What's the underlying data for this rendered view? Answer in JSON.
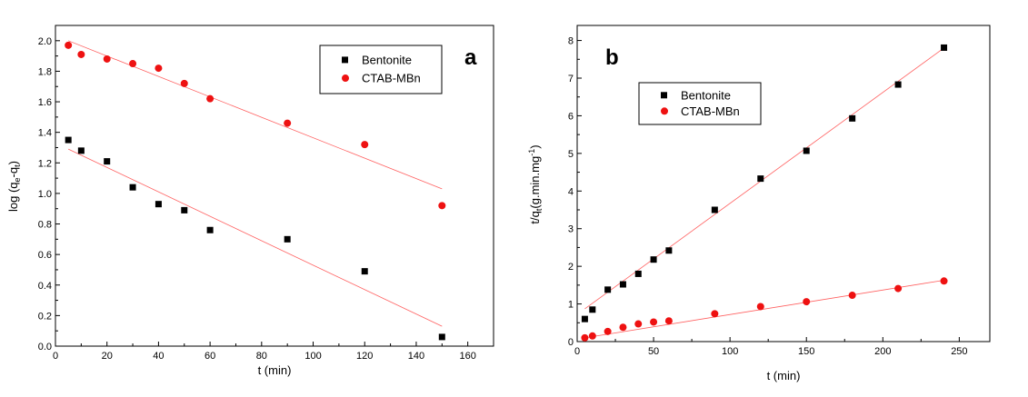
{
  "chart_data": [
    {
      "type": "scatter",
      "panel_label": "a",
      "xlabel": "t (min)",
      "ylabel_main": "log (q",
      "ylabel_sub1": "e",
      "ylabel_mid": "-q",
      "ylabel_sub2": "t",
      "ylabel_end": ")",
      "xlim": [
        0,
        170
      ],
      "ylim": [
        0,
        2.1
      ],
      "xticks": [
        0,
        20,
        40,
        60,
        80,
        100,
        120,
        140,
        160
      ],
      "yticks": [
        0.0,
        0.2,
        0.4,
        0.6,
        0.8,
        1.0,
        1.2,
        1.4,
        1.6,
        1.8,
        2.0
      ],
      "xtick_labels": [
        "0",
        "20",
        "40",
        "60",
        "80",
        "100",
        "120",
        "140",
        "160"
      ],
      "ytick_labels": [
        "0.0",
        "0.2",
        "0.4",
        "0.6",
        "0.8",
        "1.0",
        "1.2",
        "1.4",
        "1.6",
        "1.8",
        "2.0"
      ],
      "legend_position": "top-right",
      "series": [
        {
          "name": "Bentonite",
          "marker": "square",
          "color": "#000000",
          "x": [
            5,
            10,
            20,
            30,
            40,
            50,
            60,
            90,
            120,
            150
          ],
          "y": [
            1.35,
            1.28,
            1.21,
            1.04,
            0.93,
            0.89,
            0.76,
            0.7,
            0.49,
            0.06
          ],
          "fit": {
            "x": [
              5,
              150
            ],
            "y": [
              1.29,
              0.13
            ],
            "color": "#ff6060"
          }
        },
        {
          "name": "CTAB-MBn",
          "marker": "circle",
          "color": "#ee1111",
          "x": [
            5,
            10,
            20,
            30,
            40,
            50,
            60,
            90,
            120,
            150
          ],
          "y": [
            1.97,
            1.91,
            1.88,
            1.85,
            1.82,
            1.72,
            1.62,
            1.46,
            1.32,
            0.92
          ],
          "fit": {
            "x": [
              5,
              150
            ],
            "y": [
              2.0,
              1.03
            ],
            "color": "#ff6060"
          }
        }
      ]
    },
    {
      "type": "scatter",
      "panel_label": "b",
      "xlabel": "t (min)",
      "ylabel_main": "t/q",
      "ylabel_sub1": "t",
      "ylabel_mid": "(g.min.mg",
      "ylabel_sup": "-1",
      "ylabel_end": ")",
      "xlim": [
        0,
        270
      ],
      "ylim": [
        0,
        8.4
      ],
      "xticks": [
        0,
        50,
        100,
        150,
        200,
        250
      ],
      "yticks": [
        0,
        1,
        2,
        3,
        4,
        5,
        6,
        7,
        8
      ],
      "xtick_labels": [
        "0",
        "50",
        "100",
        "150",
        "200",
        "250"
      ],
      "ytick_labels": [
        "0",
        "1",
        "2",
        "3",
        "4",
        "5",
        "6",
        "7",
        "8"
      ],
      "legend_position": "top-left",
      "series": [
        {
          "name": "Bentonite",
          "marker": "square",
          "color": "#000000",
          "x": [
            5,
            10,
            20,
            30,
            40,
            50,
            60,
            90,
            120,
            150,
            180,
            210,
            240
          ],
          "y": [
            0.6,
            0.85,
            1.38,
            1.52,
            1.8,
            2.18,
            2.42,
            3.5,
            4.33,
            5.07,
            5.93,
            6.83,
            7.81
          ],
          "fit": {
            "x": [
              5,
              240
            ],
            "y": [
              0.87,
              7.8
            ],
            "color": "#ff6060"
          }
        },
        {
          "name": "CTAB-MBn",
          "marker": "circle",
          "color": "#ee1111",
          "x": [
            5,
            10,
            20,
            30,
            40,
            50,
            60,
            90,
            120,
            150,
            180,
            210,
            240
          ],
          "y": [
            0.1,
            0.15,
            0.27,
            0.38,
            0.47,
            0.52,
            0.55,
            0.74,
            0.93,
            1.06,
            1.23,
            1.41,
            1.61
          ],
          "fit": {
            "x": [
              5,
              240
            ],
            "y": [
              0.1,
              1.63
            ],
            "color": "#ff6060"
          }
        }
      ]
    }
  ]
}
